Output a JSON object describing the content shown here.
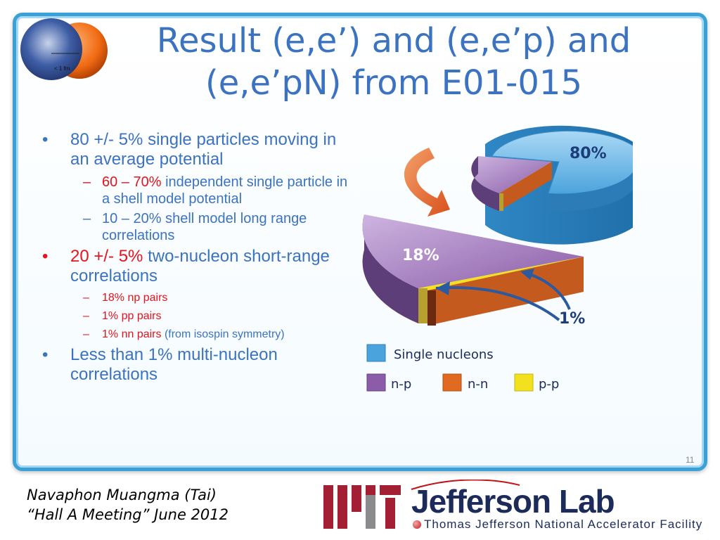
{
  "title": {
    "line1": "Result (e,e’) and (e,e’p) and",
    "line2": "(e,e’pN) from E01-015"
  },
  "logo": {
    "scale_label": "< 1 fm"
  },
  "bullets": {
    "b1": {
      "text": "80 +/- 5% single particles moving in an average potential"
    },
    "b1_sub1": {
      "highlight": "60 – 70%",
      "text": " independent single particle in a shell model potential"
    },
    "b1_sub2": {
      "text": "10 – 20% shell model long range correlations"
    },
    "b2": {
      "highlight": "20 +/- 5%",
      "text": " two-nucleon short-range correlations"
    },
    "b2_sub1": {
      "text": "18% np pairs"
    },
    "b2_sub2": {
      "text": "1% pp pairs"
    },
    "b2_sub3": {
      "highlight": "1% nn pairs",
      "text": " (from isospin symmetry)"
    },
    "b3": {
      "text": "Less than 1% multi-nucleon correlations"
    },
    "bullet_char": "•",
    "dash_char": "–"
  },
  "chart_data": {
    "type": "pie",
    "slices": [
      {
        "label": "Single nucleons",
        "value": 80,
        "color": "#4aa3dc"
      },
      {
        "label": "n-p",
        "value": 18,
        "color": "#8b5ca8"
      },
      {
        "label": "n-n",
        "value": 1,
        "color": "#d9661f"
      },
      {
        "label": "p-p",
        "value": 1,
        "color": "#f3e020"
      }
    ],
    "data_labels": {
      "big": "80%",
      "mid": "18%",
      "small": "1%"
    },
    "legend": [
      "Single nucleons",
      "n-p",
      "n-n",
      "p-p"
    ]
  },
  "page_number": "11",
  "footer": {
    "author": "Navaphon Muangma (Tai)",
    "event": "“Hall A Meeting” June 2012",
    "lab_name": "Jefferson Lab",
    "lab_full": "Thomas Jefferson National Accelerator Facility"
  }
}
